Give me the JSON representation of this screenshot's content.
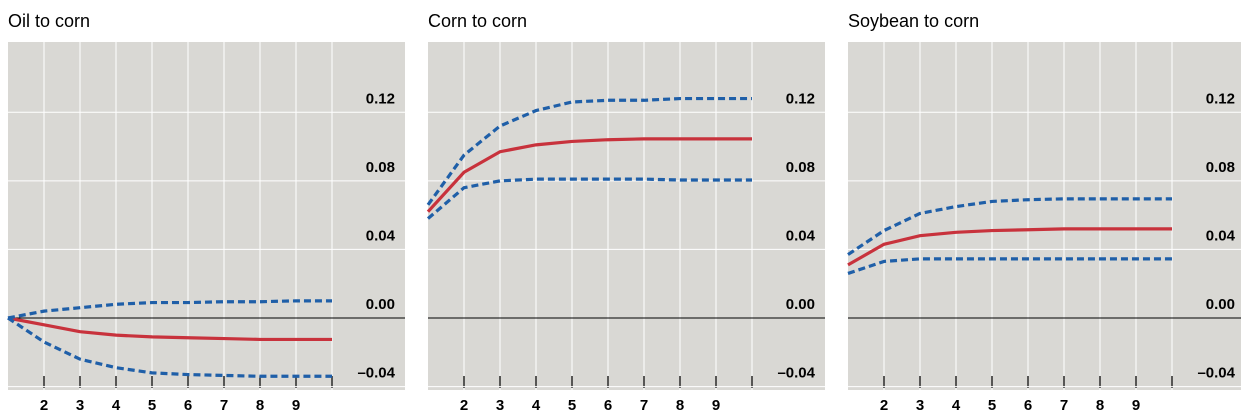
{
  "chart_data": [
    {
      "type": "line",
      "title": "Oil to corn",
      "categories": [
        null,
        "2",
        "3",
        "4",
        "5",
        "6",
        "7",
        "8",
        "9",
        null
      ],
      "series": [
        {
          "color": "#c8323c",
          "style": "solid",
          "values": [
            0,
            -0.004,
            -0.008,
            -0.01,
            -0.011,
            -0.0115,
            -0.012,
            -0.0125,
            -0.0125,
            -0.0125
          ]
        },
        {
          "color": "#1f5fa8",
          "style": "dashed",
          "values": [
            0,
            0.004,
            0.006,
            0.008,
            0.009,
            0.009,
            0.0095,
            0.0095,
            0.01,
            0.01
          ]
        },
        {
          "color": "#1f5fa8",
          "style": "dashed",
          "values": [
            0,
            -0.014,
            -0.024,
            -0.029,
            -0.032,
            -0.033,
            -0.0335,
            -0.034,
            -0.034,
            -0.034
          ]
        }
      ],
      "ylim": [
        -0.042,
        0.161
      ],
      "yticks": [
        {
          "value": -0.04,
          "label": "–0.04"
        },
        {
          "value": 0,
          "label": "0.00"
        },
        0.04,
        0.08,
        0.12
      ],
      "grid": true
    },
    {
      "type": "line",
      "title": "Corn to corn",
      "categories": [
        null,
        "2",
        "3",
        "4",
        "5",
        "6",
        "7",
        "8",
        "9",
        null
      ],
      "series": [
        {
          "color": "#c8323c",
          "style": "solid",
          "values": [
            0.062,
            0.085,
            0.097,
            0.101,
            0.103,
            0.104,
            0.1045,
            0.1045,
            0.1045,
            0.1045
          ]
        },
        {
          "color": "#1f5fa8",
          "style": "dashed",
          "values": [
            0.066,
            0.095,
            0.112,
            0.121,
            0.126,
            0.127,
            0.127,
            0.128,
            0.128,
            0.128
          ]
        },
        {
          "color": "#1f5fa8",
          "style": "dashed",
          "values": [
            0.058,
            0.076,
            0.08,
            0.081,
            0.081,
            0.081,
            0.081,
            0.0805,
            0.0805,
            0.0805
          ]
        }
      ],
      "ylim": [
        -0.042,
        0.161
      ],
      "yticks": [
        {
          "value": -0.04,
          "label": "–0.04"
        },
        {
          "value": 0,
          "label": "0.00"
        },
        0.04,
        0.08,
        0.12
      ],
      "grid": true
    },
    {
      "type": "line",
      "title": "Soybean to corn",
      "categories": [
        null,
        "2",
        "3",
        "4",
        "5",
        "6",
        "7",
        "8",
        "9",
        null
      ],
      "series": [
        {
          "color": "#c8323c",
          "style": "solid",
          "values": [
            0.031,
            0.043,
            0.048,
            0.05,
            0.051,
            0.0515,
            0.052,
            0.052,
            0.052,
            0.052
          ]
        },
        {
          "color": "#1f5fa8",
          "style": "dashed",
          "values": [
            0.037,
            0.051,
            0.061,
            0.065,
            0.068,
            0.069,
            0.0695,
            0.0695,
            0.0695,
            0.0695
          ]
        },
        {
          "color": "#1f5fa8",
          "style": "dashed",
          "values": [
            0.026,
            0.033,
            0.0345,
            0.0345,
            0.0345,
            0.0345,
            0.0345,
            0.0345,
            0.0345,
            0.0345
          ]
        }
      ],
      "ylim": [
        -0.042,
        0.161
      ],
      "yticks": [
        {
          "value": -0.04,
          "label": "–0.04"
        },
        {
          "value": 0,
          "label": "0.00"
        },
        0.04,
        0.08,
        0.12
      ],
      "grid": true
    }
  ]
}
